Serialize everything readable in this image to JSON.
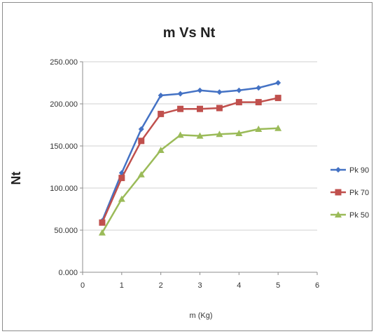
{
  "chart_data": {
    "type": "line",
    "title": "m Vs Nt",
    "xlabel": "m (Kg)",
    "ylabel": "Nt",
    "xlim": [
      0,
      6
    ],
    "ylim": [
      0,
      250
    ],
    "xticks": [
      "0",
      "1",
      "2",
      "3",
      "4",
      "5",
      "6"
    ],
    "yticks": [
      "0.000",
      "50.000",
      "100.000",
      "150.000",
      "200.000",
      "250.000"
    ],
    "grid": "horizontal",
    "legend_position": "right",
    "x": [
      0.5,
      1,
      1.5,
      2,
      2.5,
      3,
      3.5,
      4,
      4.5,
      5
    ],
    "series": [
      {
        "name": "Pk 90",
        "color": "#4472C4",
        "marker": "diamond",
        "values": [
          61,
          118,
          170,
          210,
          212,
          216,
          214,
          216,
          219,
          225
        ]
      },
      {
        "name": "Pk 70",
        "color": "#C0504D",
        "marker": "square",
        "values": [
          59,
          112,
          156,
          188,
          194,
          194,
          195,
          202,
          202,
          207
        ]
      },
      {
        "name": "Pk 50",
        "color": "#9BBB59",
        "marker": "triangle",
        "values": [
          47,
          87,
          116,
          145,
          163,
          162,
          164,
          165,
          170,
          171
        ]
      }
    ]
  }
}
